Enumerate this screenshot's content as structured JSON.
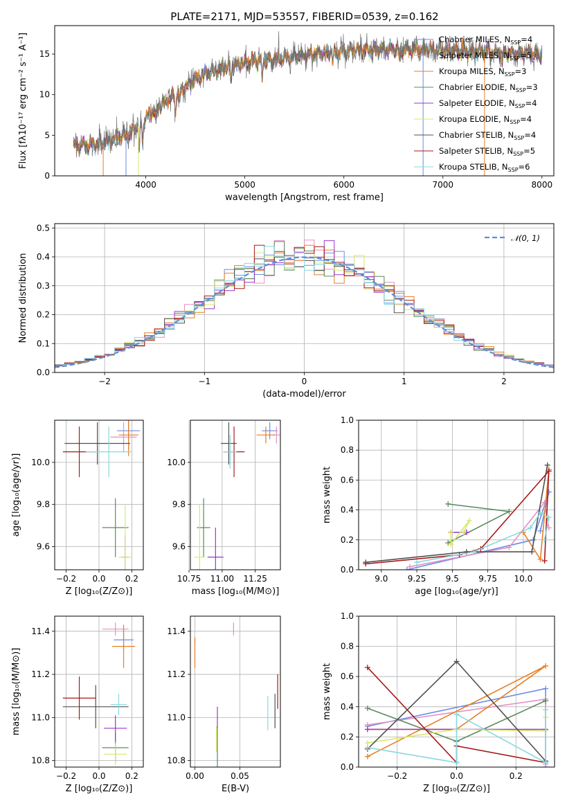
{
  "title": "PLATE=2171, MJD=53557, FIBERID=0539, z=0.162",
  "legend_lines": [
    {
      "pre": "Chabrier MILES, N",
      "sub": "SSP",
      "post": "=4"
    },
    {
      "pre": "Salpeter MILES, N",
      "sub": "SSP",
      "post": "=5"
    },
    {
      "pre": "Kroupa MILES, N",
      "sub": "SSP",
      "post": "=3"
    },
    {
      "pre": "Chabrier ELODIE, N",
      "sub": "SSP",
      "post": "=3"
    },
    {
      "pre": "Salpeter ELODIE, N",
      "sub": "SSP",
      "post": "=4"
    },
    {
      "pre": "Kroupa ELODIE, N",
      "sub": "SSP",
      "post": "=4"
    },
    {
      "pre": "Chabrier STELIB, N",
      "sub": "SSP",
      "post": "=4"
    },
    {
      "pre": "Salpeter STELIB, N",
      "sub": "SSP",
      "post": "=5"
    },
    {
      "pre": "Kroupa STELIB, N",
      "sub": "SSP",
      "post": "=6"
    }
  ],
  "colors": [
    "#6b8be6",
    "#e68fc5",
    "#e87d22",
    "#5b8a5f",
    "#9b34c9",
    "#d8e86b",
    "#505050",
    "#a51a1a",
    "#86d8de"
  ],
  "chart_data": [
    {
      "id": "spectrum",
      "type": "line",
      "xlabel": "wavelength [Angstrom, rest frame]",
      "ylabel": "Flux [fλ10⁻¹⁷ erg cm⁻² s⁻¹ A⁻¹]",
      "xlim": [
        3080,
        8120
      ],
      "ylim": [
        0,
        18.5
      ],
      "xticks": [
        4000,
        5000,
        6000,
        7000,
        8000
      ],
      "yticks": [
        0,
        5,
        10,
        15
      ],
      "data_range": [
        3270,
        8000
      ],
      "continuum": [
        [
          3270,
          3.8
        ],
        [
          3500,
          3.9
        ],
        [
          3650,
          4.3
        ],
        [
          3850,
          5.3
        ],
        [
          4000,
          7.2
        ],
        [
          4200,
          9.2
        ],
        [
          4400,
          11.0
        ],
        [
          4600,
          12.6
        ],
        [
          4800,
          13.3
        ],
        [
          5000,
          14.0
        ],
        [
          5400,
          14.6
        ],
        [
          6000,
          15.4
        ],
        [
          6500,
          15.6
        ],
        [
          7000,
          15.5
        ],
        [
          7500,
          15.2
        ],
        [
          8000,
          15.0
        ]
      ],
      "absorption_lines": [
        [
          3934,
          3.5
        ],
        [
          3968,
          3.0
        ],
        [
          4102,
          1.5
        ],
        [
          4300,
          2.5
        ],
        [
          4340,
          1.5
        ],
        [
          4861,
          1.5
        ],
        [
          5175,
          2.5
        ],
        [
          5270,
          1.0
        ],
        [
          5890,
          1.5
        ],
        [
          6563,
          1.5
        ],
        [
          7600,
          1.5
        ]
      ]
    },
    {
      "id": "residuals",
      "type": "step",
      "xlabel": "(data-model)/error",
      "ylabel": "Normed distribution",
      "xlim": [
        -2.5,
        2.5
      ],
      "ylim": [
        0,
        0.515
      ],
      "xticks": [
        -2,
        -1,
        0,
        1,
        2
      ],
      "yticks": [
        0.0,
        0.1,
        0.2,
        0.3,
        0.4,
        0.5
      ],
      "bin_width": 0.1,
      "bin_start": -2.5,
      "reference_curve": "N(0,1)",
      "legend": "𝒩(0, 1)"
    },
    {
      "id": "age_vs_Z",
      "type": "errorbar",
      "xlabel": "Z [log₁₀(Z/Z⊙)]",
      "ylabel": "age  [log₁₀(age/yr)]",
      "xlim": [
        -0.27,
        0.27
      ],
      "ylim": [
        9.49,
        10.2
      ],
      "xticks": [
        -0.2,
        0.0,
        0.2
      ],
      "yticks": [
        9.6,
        9.8,
        10.0
      ],
      "points": [
        {
          "x": 0.18,
          "y": 10.15,
          "xerr": 0.07,
          "yerr": 0.09
        },
        {
          "x": 0.15,
          "y": 10.12,
          "xerr": 0.08,
          "yerr": 0.07
        },
        {
          "x": 0.18,
          "y": 10.13,
          "xerr": 0.06,
          "yerr": 0.1
        },
        {
          "x": 0.1,
          "y": 9.69,
          "xerr": 0.08,
          "yerr": 0.14
        },
        {
          "x": 0.16,
          "y": 9.55,
          "xerr": 0.02,
          "yerr": 0.1
        },
        {
          "x": 0.16,
          "y": 9.55,
          "xerr": 0.04,
          "yerr": 0.25
        },
        {
          "x": -0.01,
          "y": 10.09,
          "xerr": 0.2,
          "yerr": 0.1
        },
        {
          "x": -0.12,
          "y": 10.05,
          "xerr": 0.1,
          "yerr": 0.12
        },
        {
          "x": 0.06,
          "y": 10.05,
          "xerr": 0.14,
          "yerr": 0.12
        }
      ]
    },
    {
      "id": "age_vs_mass",
      "type": "errorbar",
      "xlabel": "mass [log₁₀(M/M⊙)]",
      "ylabel": "",
      "xlim": [
        10.76,
        11.44
      ],
      "ylim": [
        9.49,
        10.2
      ],
      "xticks": [
        10.75,
        11.0,
        11.25
      ],
      "yticks": [
        9.6,
        9.8,
        10.0
      ],
      "points": [
        {
          "x": 11.36,
          "y": 10.15,
          "xerr": 0.06,
          "yerr": 0.04
        },
        {
          "x": 11.41,
          "y": 10.13,
          "xerr": 0.03,
          "yerr": 0.04
        },
        {
          "x": 11.33,
          "y": 10.13,
          "xerr": 0.07,
          "yerr": 0.04
        },
        {
          "x": 10.86,
          "y": 9.69,
          "xerr": 0.05,
          "yerr": 0.14
        },
        {
          "x": 10.95,
          "y": 9.55,
          "xerr": 0.06,
          "yerr": 0.14
        },
        {
          "x": 10.83,
          "y": 9.55,
          "xerr": 0.04,
          "yerr": 0.25
        },
        {
          "x": 11.05,
          "y": 10.09,
          "xerr": 0.06,
          "yerr": 0.1
        },
        {
          "x": 11.09,
          "y": 10.05,
          "xerr": 0.08,
          "yerr": 0.12
        },
        {
          "x": 11.06,
          "y": 10.05,
          "xerr": 0.05,
          "yerr": 0.08
        }
      ]
    },
    {
      "id": "weights_vs_age",
      "type": "line",
      "xlabel": "age  [log₁₀(age/yr)]",
      "ylabel": "mass weight",
      "xlim": [
        8.84,
        10.22
      ],
      "ylim": [
        0,
        1
      ],
      "xticks": [
        9.0,
        9.25,
        9.5,
        9.75,
        10.0
      ],
      "yticks": [
        0.0,
        0.2,
        0.4,
        0.6,
        0.8,
        1.0
      ],
      "series": [
        {
          "points": [
            [
              9.18,
              0.0
            ],
            [
              10.07,
              0.2
            ],
            [
              10.18,
              0.52
            ],
            [
              10.12,
              0.26
            ]
          ]
        },
        {
          "points": [
            [
              9.2,
              0.02
            ],
            [
              9.9,
              0.15
            ],
            [
              10.15,
              0.45
            ],
            [
              10.18,
              0.28
            ]
          ]
        },
        {
          "points": [
            [
              10.0,
              0.25
            ],
            [
              10.12,
              0.07
            ],
            [
              10.18,
              0.67
            ]
          ]
        },
        {
          "points": [
            [
              9.47,
              0.18
            ],
            [
              9.9,
              0.39
            ],
            [
              9.47,
              0.44
            ]
          ]
        },
        {
          "points": [
            [
              9.49,
              0.25
            ],
            [
              9.6,
              0.25
            ],
            [
              9.6,
              0.25
            ],
            [
              9.49,
              0.25
            ]
          ]
        },
        {
          "points": [
            [
              9.49,
              0.25
            ],
            [
              9.49,
              0.17
            ],
            [
              9.62,
              0.33
            ],
            [
              9.58,
              0.25
            ]
          ]
        },
        {
          "points": [
            [
              8.89,
              0.05
            ],
            [
              9.6,
              0.12
            ],
            [
              10.06,
              0.12
            ],
            [
              10.17,
              0.7
            ]
          ]
        },
        {
          "points": [
            [
              8.89,
              0.04
            ],
            [
              9.55,
              0.1
            ],
            [
              9.7,
              0.14
            ],
            [
              10.18,
              0.66
            ],
            [
              10.15,
              0.06
            ]
          ]
        },
        {
          "points": [
            [
              9.25,
              0.05
            ],
            [
              9.65,
              0.12
            ],
            [
              10.05,
              0.28
            ],
            [
              10.12,
              0.38
            ],
            [
              10.18,
              0.35
            ],
            [
              10.15,
              0.2
            ]
          ]
        }
      ]
    },
    {
      "id": "mass_vs_Z",
      "type": "errorbar",
      "xlabel": "Z [log₁₀(Z/Z⊙)]",
      "ylabel": "mass [log₁₀(M/M⊙)]",
      "xlim": [
        -0.27,
        0.27
      ],
      "ylim": [
        10.77,
        11.47
      ],
      "xticks": [
        -0.2,
        0.0,
        0.2
      ],
      "yticks": [
        10.8,
        11.0,
        11.2,
        11.4
      ],
      "points": [
        {
          "x": 0.15,
          "y": 11.36,
          "xerr": 0.06,
          "yerr": 0.05
        },
        {
          "x": 0.1,
          "y": 11.41,
          "xerr": 0.08,
          "yerr": 0.03
        },
        {
          "x": 0.15,
          "y": 11.33,
          "xerr": 0.07,
          "yerr": 0.1
        },
        {
          "x": 0.1,
          "y": 10.86,
          "xerr": 0.08,
          "yerr": 0.07
        },
        {
          "x": 0.1,
          "y": 10.95,
          "xerr": 0.07,
          "yerr": 0.06
        },
        {
          "x": 0.1,
          "y": 10.83,
          "xerr": 0.07,
          "yerr": 0.05
        },
        {
          "x": -0.02,
          "y": 11.05,
          "xerr": 0.2,
          "yerr": 0.1
        },
        {
          "x": -0.12,
          "y": 11.09,
          "xerr": 0.1,
          "yerr": 0.1
        },
        {
          "x": 0.12,
          "y": 11.06,
          "xerr": 0.05,
          "yerr": 0.05
        }
      ]
    },
    {
      "id": "mass_vs_EBV",
      "type": "errorbar",
      "xlabel": "E(B-V)",
      "ylabel": "",
      "xlim": [
        -0.005,
        0.095
      ],
      "ylim": [
        10.77,
        11.47
      ],
      "xticks": [
        0.0,
        0.05
      ],
      "yticks": [
        10.8,
        11.0,
        11.2,
        11.4
      ],
      "points": [
        {
          "x": 0.0,
          "y": 11.36,
          "xerr": 0.0,
          "yerr": 0.01
        },
        {
          "x": 0.043,
          "y": 11.41,
          "xerr": 0.0,
          "yerr": 0.03
        },
        {
          "x": 0.0,
          "y": 11.3,
          "xerr": 0.0,
          "yerr": 0.07
        },
        {
          "x": 0.025,
          "y": 10.86,
          "xerr": 0.0,
          "yerr": 0.1
        },
        {
          "x": 0.025,
          "y": 11.0,
          "xerr": 0.0,
          "yerr": 0.05
        },
        {
          "x": 0.024,
          "y": 10.9,
          "xerr": 0.0,
          "yerr": 0.06
        },
        {
          "x": 0.089,
          "y": 11.03,
          "xerr": 0.0,
          "yerr": 0.08
        },
        {
          "x": 0.092,
          "y": 11.12,
          "xerr": 0.0,
          "yerr": 0.08
        },
        {
          "x": 0.081,
          "y": 11.02,
          "xerr": 0.0,
          "yerr": 0.08
        }
      ]
    },
    {
      "id": "weights_vs_Z",
      "type": "line",
      "xlabel": "Z [log₁₀(Z/Z⊙)]",
      "ylabel": "mass weight",
      "xlim": [
        -0.33,
        0.33
      ],
      "ylim": [
        0,
        1
      ],
      "xticks": [
        -0.2,
        0.0,
        0.2
      ],
      "yticks": [
        0.0,
        0.2,
        0.4,
        0.6,
        0.8,
        1.0
      ],
      "series": [
        {
          "points": [
            [
              -0.3,
              0.27
            ],
            [
              0.3,
              0.52
            ],
            [
              0.3,
              0.0
            ]
          ]
        },
        {
          "points": [
            [
              -0.3,
              0.28
            ],
            [
              0.3,
              0.45
            ],
            [
              0.3,
              0.02
            ]
          ]
        },
        {
          "points": [
            [
              -0.3,
              0.07
            ],
            [
              0.3,
              0.67
            ],
            [
              0.0,
              0.25
            ],
            [
              -0.3,
              0.25
            ]
          ]
        },
        {
          "points": [
            [
              -0.3,
              0.39
            ],
            [
              0.0,
              0.17
            ],
            [
              0.3,
              0.44
            ]
          ]
        },
        {
          "points": [
            [
              -0.3,
              0.25
            ],
            [
              0.0,
              0.25
            ],
            [
              0.3,
              0.25
            ]
          ]
        },
        {
          "points": [
            [
              -0.3,
              0.16
            ],
            [
              0.0,
              0.25
            ],
            [
              0.3,
              0.24
            ],
            [
              0.3,
              0.33
            ]
          ]
        },
        {
          "points": [
            [
              -0.3,
              0.12
            ],
            [
              0.0,
              0.7
            ],
            [
              0.3,
              0.04
            ]
          ]
        },
        {
          "points": [
            [
              -0.3,
              0.66
            ],
            [
              0.0,
              0.03
            ],
            [
              0.0,
              0.14
            ],
            [
              0.3,
              0.03
            ]
          ]
        },
        {
          "points": [
            [
              -0.3,
              0.13
            ],
            [
              0.0,
              0.03
            ],
            [
              0.0,
              0.35
            ],
            [
              0.3,
              0.03
            ],
            [
              0.3,
              0.38
            ]
          ]
        }
      ]
    }
  ]
}
